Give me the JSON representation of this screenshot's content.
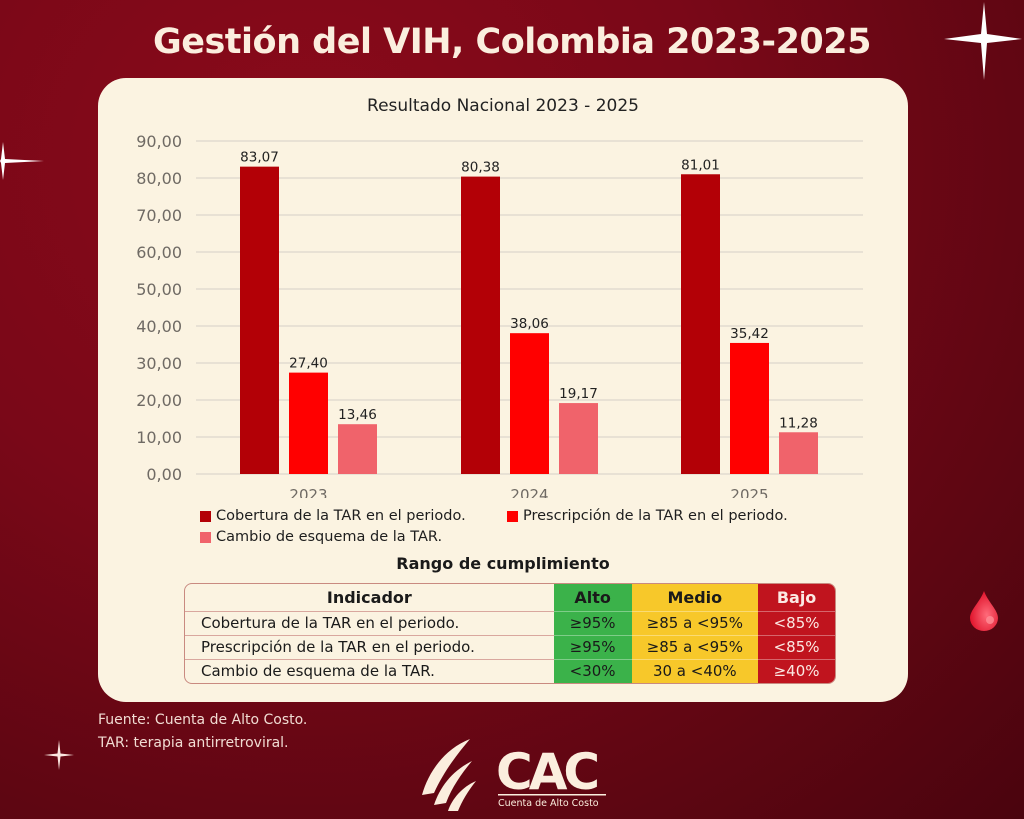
{
  "header": {
    "title": "Gestión del VIH, Colombia 2023-2025"
  },
  "chart_data": {
    "type": "bar",
    "title": "Resultado Nacional 2023 - 2025",
    "xlabel": "",
    "ylabel": "",
    "ylim": [
      0,
      90
    ],
    "grid": true,
    "legend_position": "bottom",
    "yticks": [
      "0,00",
      "10,00",
      "20,00",
      "30,00",
      "40,00",
      "50,00",
      "60,00",
      "70,00",
      "80,00",
      "90,00"
    ],
    "categories": [
      "2023",
      "2024",
      "2025"
    ],
    "series": [
      {
        "name": "Cobertura de la TAR en el periodo.",
        "color": "#b30006",
        "values": [
          83.07,
          80.38,
          81.01
        ],
        "labels": [
          "83,07",
          "80,38",
          "81,01"
        ]
      },
      {
        "name": "Prescripción de la TAR en el periodo.",
        "color": "#ff0000",
        "values": [
          27.4,
          38.06,
          35.42
        ],
        "labels": [
          "27,40",
          "38,06",
          "35,42"
        ]
      },
      {
        "name": "Cambio de esquema de la TAR.",
        "color": "#f0636b",
        "values": [
          13.46,
          19.17,
          11.28
        ],
        "labels": [
          "13,46",
          "19,17",
          "11,28"
        ]
      }
    ]
  },
  "ranges": {
    "title": "Rango de cumplimiento",
    "headers": [
      "Indicador",
      "Alto",
      "Medio",
      "Bajo"
    ],
    "rows": [
      [
        "Cobertura de la TAR en el periodo.",
        "≥95%",
        "≥85 a <95%",
        "<85%"
      ],
      [
        "Prescripción de la TAR en el periodo.",
        "≥95%",
        "≥85 a <95%",
        "<85%"
      ],
      [
        "Cambio de esquema de la TAR.",
        "<30%",
        "30 a <40%",
        "≥40%"
      ]
    ],
    "colors": {
      "alto": "#3bb24a",
      "medio": "#f7c82a",
      "bajo": "#c0141e"
    }
  },
  "footer": {
    "source": "Fuente: Cuenta de Alto Costo.",
    "note": "TAR: terapia antirretroviral."
  },
  "logo": {
    "acronym": "CAC",
    "name": "Cuenta de Alto Costo"
  }
}
